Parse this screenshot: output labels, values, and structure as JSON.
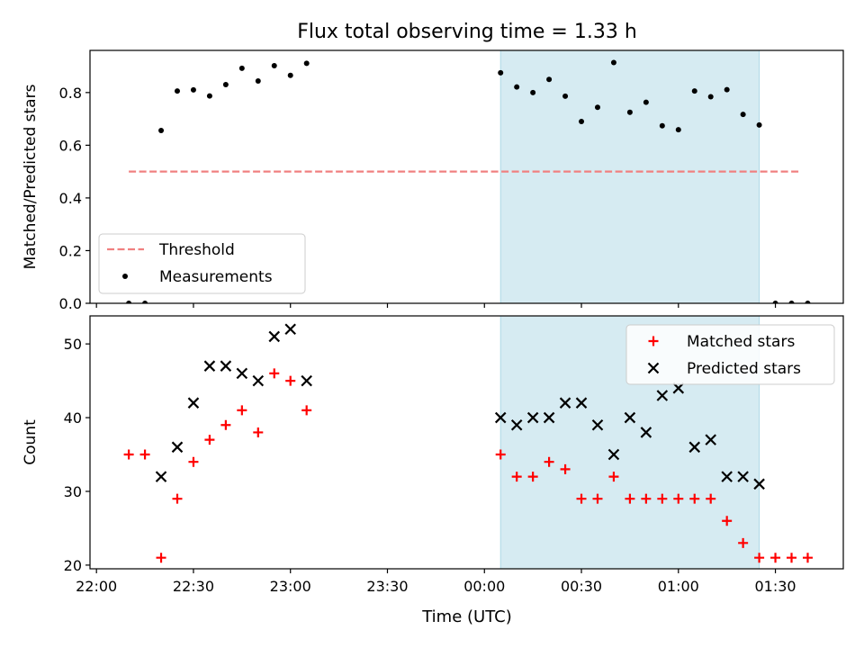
{
  "title": "Flux total observing time = 1.33 h",
  "xlabel": "Time (UTC)",
  "xtick_labels": [
    "22:00",
    "22:30",
    "23:00",
    "23:30",
    "00:00",
    "00:30",
    "01:00",
    "01:30"
  ],
  "colors": {
    "threshold": "#f08080",
    "measurement": "#000000",
    "matched": "#ff0000",
    "predicted": "#000000",
    "shade": "#add8e6"
  },
  "chart_data": [
    {
      "type": "scatter",
      "ylabel": "Matched/Predicted stars",
      "ylim": [
        0,
        0.96
      ],
      "yticks": [
        "0.0",
        "0.2",
        "0.4",
        "0.6",
        "0.8"
      ],
      "xlim": [
        "21:58",
        "01:51"
      ],
      "shaded_region": [
        "00:05",
        "01:25"
      ],
      "legend": {
        "position": "lower-left",
        "threshold_label": "Threshold",
        "measurements_label": "Measurements"
      },
      "threshold": {
        "value": 0.5,
        "x_range": [
          "22:10",
          "01:38"
        ]
      },
      "series": [
        {
          "name": "Measurements",
          "marker": "dot",
          "x": [
            "22:10",
            "22:15",
            "22:20",
            "22:25",
            "22:30",
            "22:35",
            "22:40",
            "22:45",
            "22:50",
            "22:55",
            "23:00",
            "23:05",
            "00:05",
            "00:10",
            "00:15",
            "00:20",
            "00:25",
            "00:30",
            "00:35",
            "00:40",
            "00:45",
            "00:50",
            "00:55",
            "01:00",
            "01:05",
            "01:10",
            "01:15",
            "01:20",
            "01:25",
            "01:30",
            "01:35",
            "01:40"
          ],
          "y": [
            0.0,
            0.0,
            0.656,
            0.806,
            0.81,
            0.787,
            0.83,
            0.892,
            0.844,
            0.902,
            0.865,
            0.911,
            0.875,
            0.821,
            0.8,
            0.85,
            0.786,
            0.69,
            0.744,
            0.914,
            0.725,
            0.763,
            0.674,
            0.659,
            0.806,
            0.784,
            0.811,
            0.717,
            0.677,
            0.0,
            0.0,
            0.0
          ]
        }
      ]
    },
    {
      "type": "scatter",
      "ylabel": "Count",
      "ylim": [
        19.5,
        53.8
      ],
      "yticks": [
        "20",
        "30",
        "40",
        "50"
      ],
      "xlim": [
        "21:58",
        "01:51"
      ],
      "shaded_region": [
        "00:05",
        "01:25"
      ],
      "legend": {
        "position": "upper-right"
      },
      "series": [
        {
          "name": "Matched stars",
          "marker": "plus",
          "x": [
            "22:10",
            "22:15",
            "22:20",
            "22:25",
            "22:30",
            "22:35",
            "22:40",
            "22:45",
            "22:50",
            "22:55",
            "23:00",
            "23:05",
            "00:05",
            "00:10",
            "00:15",
            "00:20",
            "00:25",
            "00:30",
            "00:35",
            "00:40",
            "00:45",
            "00:50",
            "00:55",
            "01:00",
            "01:05",
            "01:10",
            "01:15",
            "01:20",
            "01:25",
            "01:30",
            "01:35",
            "01:40"
          ],
          "y": [
            35,
            35,
            21,
            29,
            34,
            37,
            39,
            41,
            38,
            46,
            45,
            41,
            35,
            32,
            32,
            34,
            33,
            29,
            29,
            32,
            29,
            29,
            29,
            29,
            29,
            29,
            26,
            23,
            21,
            21,
            21,
            21
          ]
        },
        {
          "name": "Predicted stars",
          "marker": "cross",
          "x": [
            "22:20",
            "22:25",
            "22:30",
            "22:35",
            "22:40",
            "22:45",
            "22:50",
            "22:55",
            "23:00",
            "23:05",
            "00:05",
            "00:10",
            "00:15",
            "00:20",
            "00:25",
            "00:30",
            "00:35",
            "00:40",
            "00:45",
            "00:50",
            "00:55",
            "01:00",
            "01:05",
            "01:10",
            "01:15",
            "01:20",
            "01:25"
          ],
          "y": [
            32,
            36,
            42,
            47,
            47,
            46,
            45,
            51,
            52,
            45,
            40,
            39,
            40,
            40,
            42,
            42,
            39,
            35,
            40,
            38,
            43,
            44,
            36,
            37,
            32,
            32,
            31
          ]
        }
      ]
    }
  ]
}
